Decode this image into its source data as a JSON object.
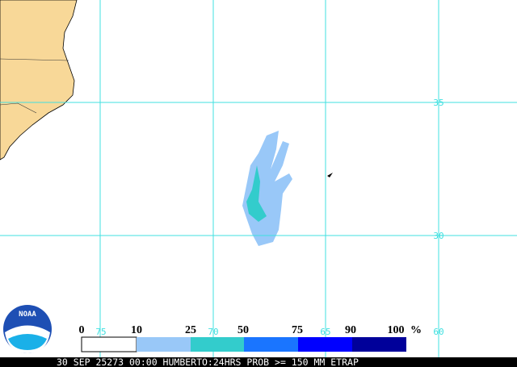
{
  "grid": {
    "latitudes": [
      "35",
      "30"
    ],
    "longitudes": [
      "75",
      "70",
      "65",
      "60"
    ]
  },
  "legend": {
    "levels": [
      "0",
      "10",
      "25",
      "50",
      "75",
      "90",
      "100"
    ],
    "unit": "%"
  },
  "logo": "NOAA",
  "footer": "30 SEP 25273 00:00 HUMBERTO:24HRS PROB >= 150 MM ETRAP"
}
